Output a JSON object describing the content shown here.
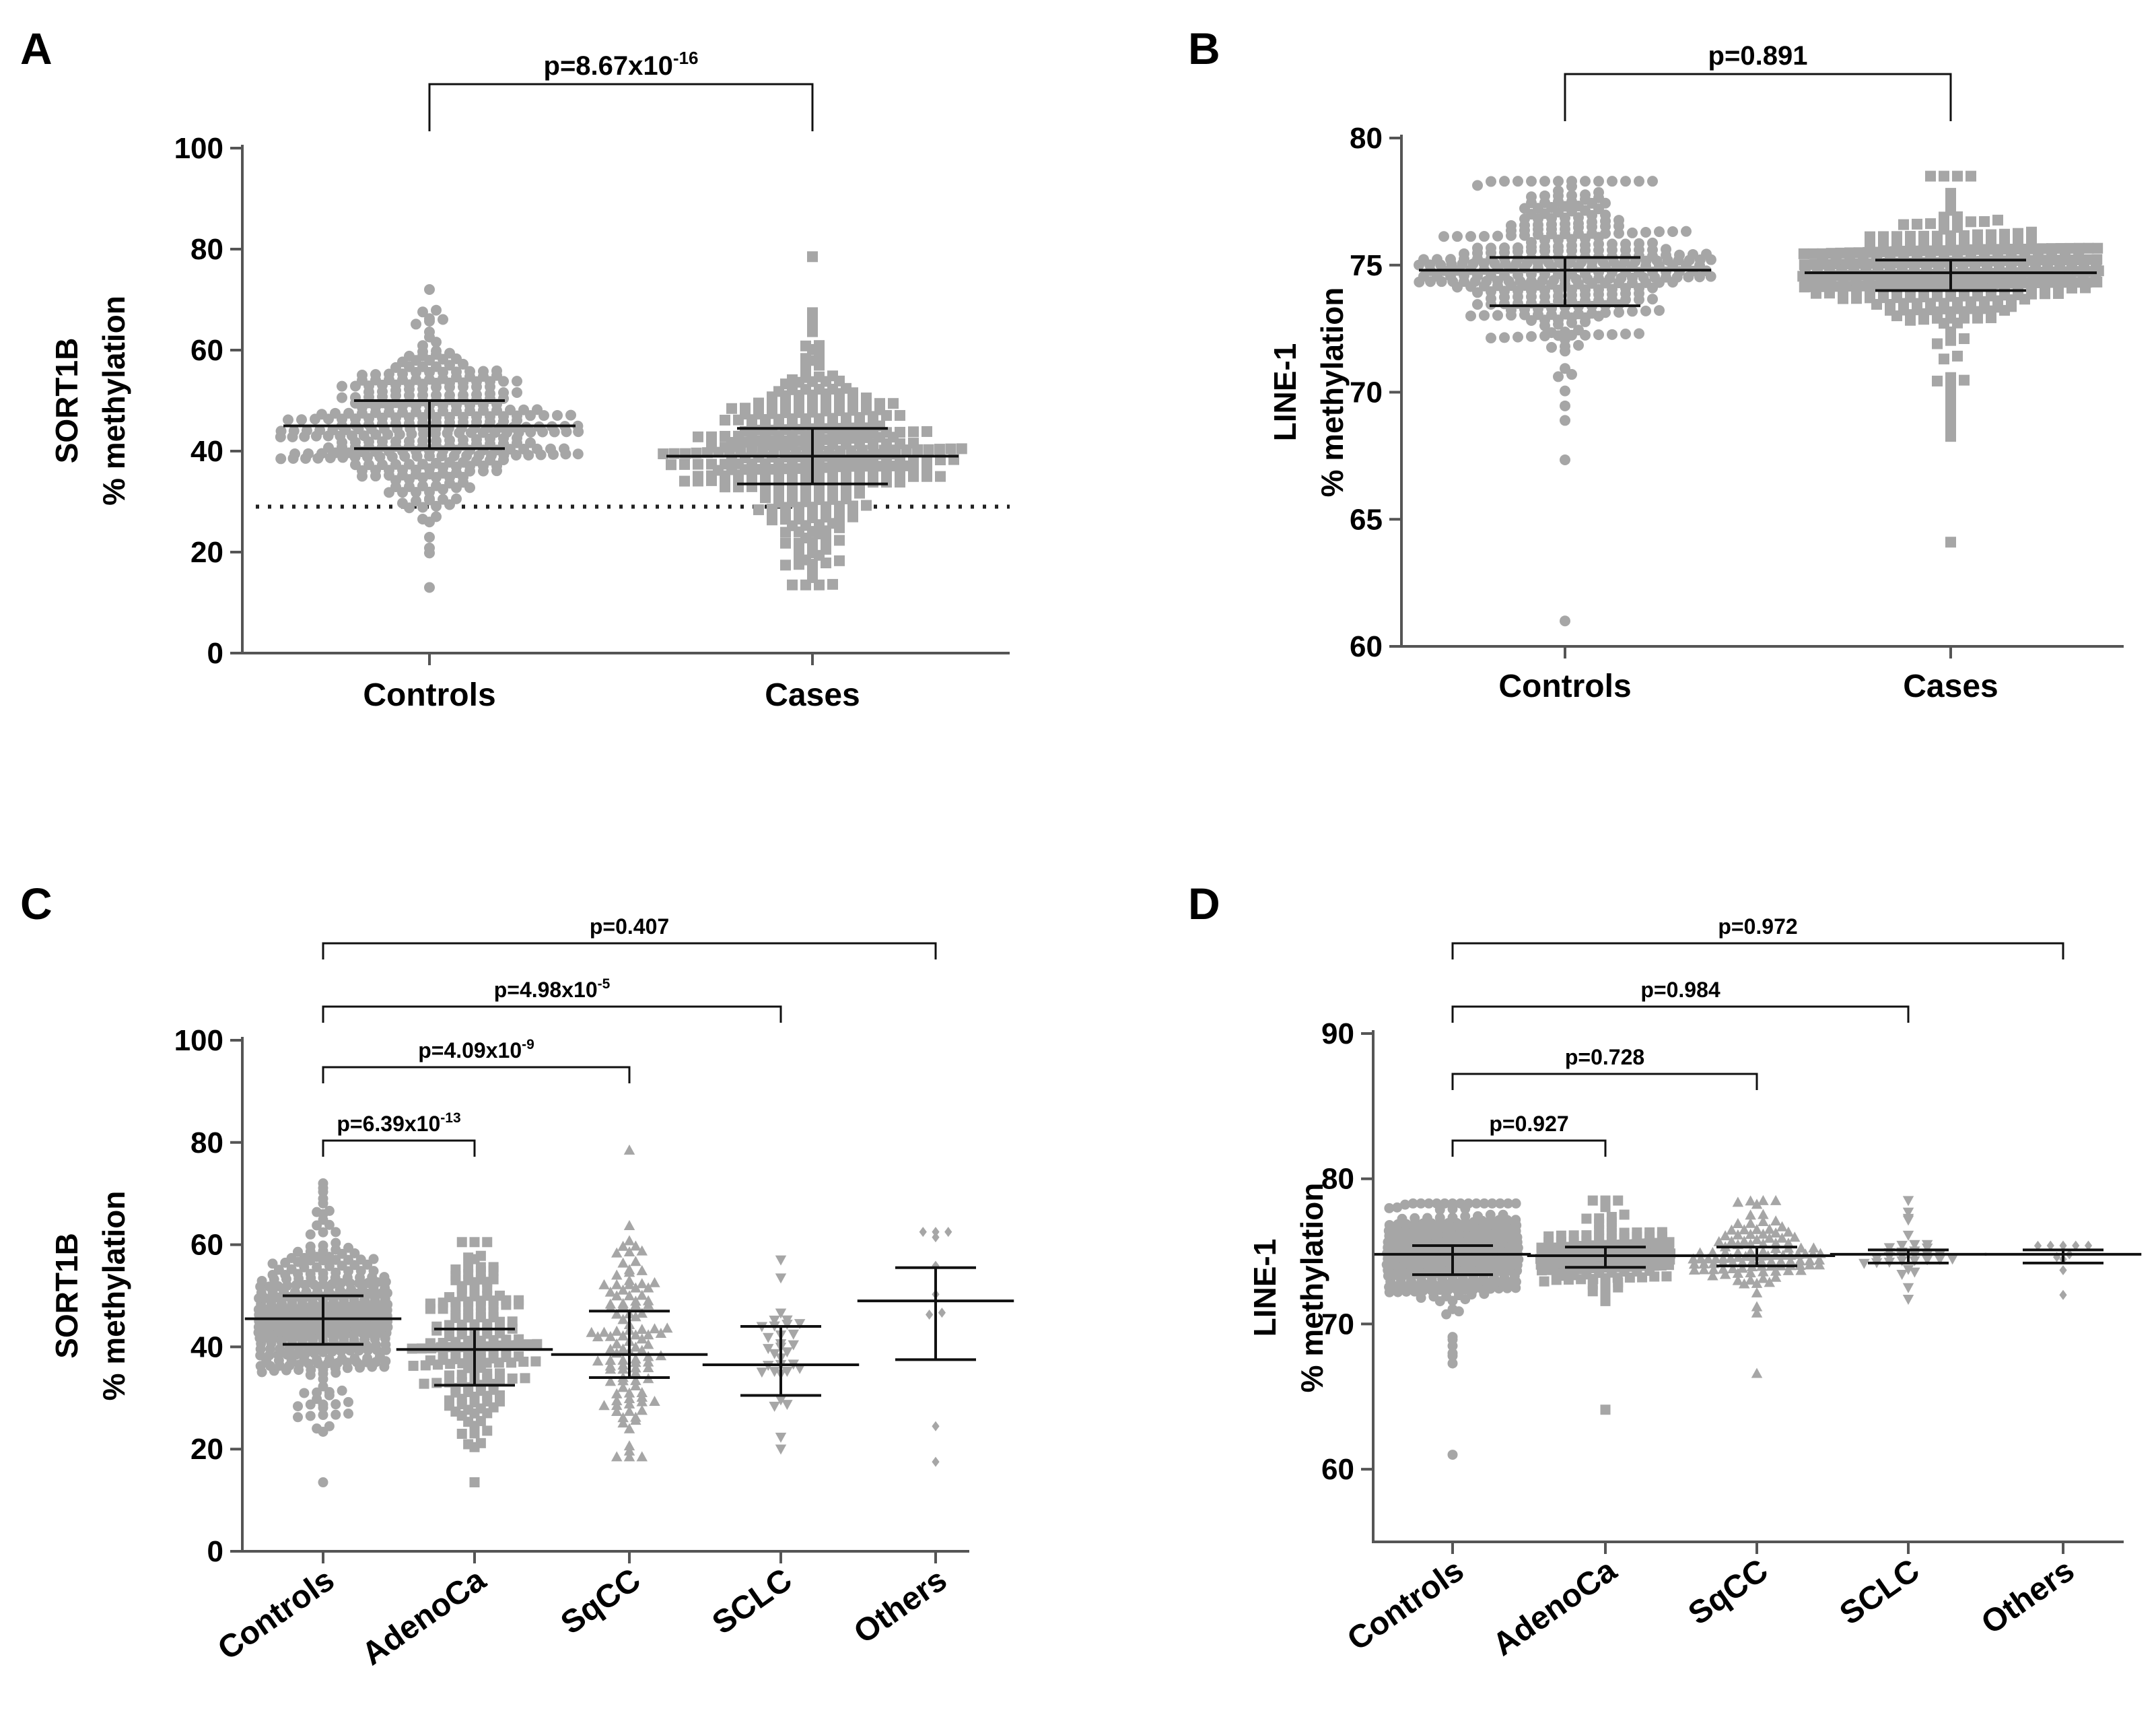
{
  "figure": {
    "panels": [
      {
        "letter": "A",
        "ylabel_line1": "SORT1B",
        "ylabel_line2": "% methylation"
      },
      {
        "letter": "B",
        "ylabel_line1": "LINE-1",
        "ylabel_line2": "% methylation"
      },
      {
        "letter": "C",
        "ylabel_line1": "SORT1B",
        "ylabel_line2": "% methylation"
      },
      {
        "letter": "D",
        "ylabel_line1": "LINE-1",
        "ylabel_line2": "% methylation"
      }
    ]
  },
  "colors": {
    "points": "#a6a6a6",
    "errorbars": "#111111",
    "axes": "#555555",
    "threshold": "#222222"
  },
  "chart_data": [
    {
      "type": "scatter",
      "panel": "A",
      "ylabel": "SORT1B % methylation",
      "ylim": [
        0,
        100
      ],
      "yticks": [
        0,
        20,
        40,
        60,
        80,
        100
      ],
      "categories": [
        "Controls",
        "Cases"
      ],
      "series": [
        {
          "category": "Controls",
          "marker": "circle",
          "median": 45,
          "q1": 40.5,
          "q3": 50,
          "min": 13,
          "max": 72,
          "n": 360
        },
        {
          "category": "Cases",
          "marker": "square",
          "median": 39,
          "q1": 33.5,
          "q3": 44.5,
          "min": 13.5,
          "max": 78.5,
          "n": 360
        }
      ],
      "threshold_line": 29,
      "comparisons": [
        {
          "from": "Controls",
          "to": "Cases",
          "p_base": "p=8.67x10",
          "p_exp": "-16"
        }
      ]
    },
    {
      "type": "scatter",
      "panel": "B",
      "ylabel": "LINE-1 % methylation",
      "ylim": [
        60,
        80
      ],
      "yticks": [
        60,
        65,
        70,
        75,
        80
      ],
      "categories": [
        "Controls",
        "Cases"
      ],
      "series": [
        {
          "category": "Controls",
          "marker": "circle",
          "median": 74.8,
          "q1": 73.4,
          "q3": 75.3,
          "min": 61,
          "max": 78.3,
          "n": 360
        },
        {
          "category": "Cases",
          "marker": "square",
          "median": 74.7,
          "q1": 74,
          "q3": 75.2,
          "min": 64.1,
          "max": 78.5,
          "n": 360
        }
      ],
      "comparisons": [
        {
          "from": "Controls",
          "to": "Cases",
          "p_base": "p=0.891",
          "p_exp": ""
        }
      ]
    },
    {
      "type": "scatter",
      "panel": "C",
      "ylabel": "SORT1B % methylation",
      "ylim": [
        0,
        100
      ],
      "yticks": [
        0,
        20,
        40,
        60,
        80,
        100
      ],
      "categories": [
        "Controls",
        "AdenoCa",
        "SqCC",
        "SCLC",
        "Others"
      ],
      "series": [
        {
          "category": "Controls",
          "marker": "circle",
          "median": 45.5,
          "q1": 40.5,
          "q3": 50,
          "min": 13.5,
          "max": 72,
          "n": 360
        },
        {
          "category": "AdenoCa",
          "marker": "square",
          "median": 39.5,
          "q1": 32.5,
          "q3": 43.5,
          "min": 13.5,
          "max": 60.5,
          "n": 170
        },
        {
          "category": "SqCC",
          "marker": "triangle",
          "median": 38.5,
          "q1": 34,
          "q3": 47,
          "min": 18.5,
          "max": 78.5,
          "n": 110
        },
        {
          "category": "SCLC",
          "marker": "triangle-down",
          "median": 36.5,
          "q1": 30.5,
          "q3": 44,
          "min": 20,
          "max": 57,
          "n": 32
        },
        {
          "category": "Others",
          "marker": "diamond",
          "median": 49,
          "q1": 37.5,
          "q3": 55.5,
          "min": 17.5,
          "max": 62.5,
          "n": 10
        }
      ],
      "comparisons": [
        {
          "from": "Controls",
          "to": "AdenoCa",
          "p_base": "p=6.39x10",
          "p_exp": "-13"
        },
        {
          "from": "Controls",
          "to": "SqCC",
          "p_base": "p=4.09x10",
          "p_exp": "-9"
        },
        {
          "from": "Controls",
          "to": "SCLC",
          "p_base": "p=4.98x10",
          "p_exp": "-5"
        },
        {
          "from": "Controls",
          "to": "Others",
          "p_base": "p=0.407",
          "p_exp": ""
        }
      ]
    },
    {
      "type": "scatter",
      "panel": "D",
      "ylabel": "LINE-1 % methylation",
      "ylim": [
        55,
        90
      ],
      "yticks": [
        60,
        70,
        80,
        90
      ],
      "categories": [
        "Controls",
        "AdenoCa",
        "SqCC",
        "SCLC",
        "Others"
      ],
      "series": [
        {
          "category": "Controls",
          "marker": "circle",
          "median": 74.8,
          "q1": 73.4,
          "q3": 75.4,
          "min": 61,
          "max": 78.3,
          "n": 360
        },
        {
          "category": "AdenoCa",
          "marker": "square",
          "median": 74.7,
          "q1": 73.9,
          "q3": 75.3,
          "min": 64.1,
          "max": 78.5,
          "n": 170
        },
        {
          "category": "SqCC",
          "marker": "triangle",
          "median": 74.7,
          "q1": 74,
          "q3": 75.3,
          "min": 66.6,
          "max": 78.5,
          "n": 110
        },
        {
          "category": "SCLC",
          "marker": "triangle-down",
          "median": 74.8,
          "q1": 74.2,
          "q3": 75.1,
          "min": 71.7,
          "max": 78.5,
          "n": 32
        },
        {
          "category": "Others",
          "marker": "diamond",
          "median": 74.8,
          "q1": 74.2,
          "q3": 75.1,
          "min": 72,
          "max": 75.4,
          "n": 10
        }
      ],
      "comparisons": [
        {
          "from": "Controls",
          "to": "AdenoCa",
          "p_base": "p=0.927",
          "p_exp": ""
        },
        {
          "from": "Controls",
          "to": "SqCC",
          "p_base": "p=0.728",
          "p_exp": ""
        },
        {
          "from": "Controls",
          "to": "SCLC",
          "p_base": "p=0.984",
          "p_exp": ""
        },
        {
          "from": "Controls",
          "to": "Others",
          "p_base": "p=0.972",
          "p_exp": ""
        }
      ]
    }
  ]
}
